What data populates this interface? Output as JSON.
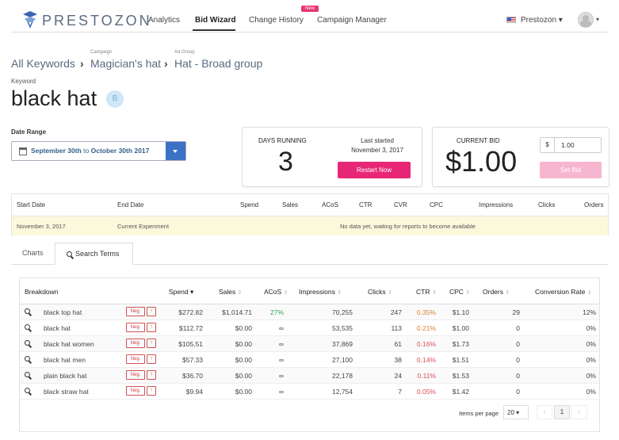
{
  "nav": {
    "brand": "PRESTOZON",
    "links": [
      "Analytics",
      "Bid Wizard",
      "Change History",
      "Campaign Manager"
    ],
    "new_badge": "New",
    "account": "Prestozon"
  },
  "breadcrumb": {
    "root": "All Keywords",
    "campaign_caption": "Campaign",
    "campaign": "Magician's hat",
    "adgroup_caption": "Ad Group",
    "adgroup": "Hat - Broad group"
  },
  "keyword": {
    "label": "Keyword",
    "title": "black hat",
    "badge": "B"
  },
  "date_range": {
    "label": "Date Range",
    "start": "September 30th",
    "sep": "to",
    "end": "October 30th 2017"
  },
  "days_card": {
    "label": "DAYS RUNNING",
    "value": "3",
    "last_started_label": "Last started",
    "last_started": "November 3, 2017",
    "button": "Restart Now"
  },
  "bid_card": {
    "label": "CURRENT BID",
    "value": "$1.00",
    "currency": "$",
    "input": "1.00",
    "button": "Set Bid"
  },
  "experiment": {
    "headers": [
      "Start Date",
      "End Date",
      "Spend",
      "Sales",
      "ACoS",
      "CTR",
      "CVR",
      "CPC",
      "Impressions",
      "Clicks",
      "Orders"
    ],
    "row": {
      "start": "November 3, 2017",
      "end": "Current Experiment",
      "message": "No data yet, waiting for reports to become available"
    }
  },
  "tabs": [
    "Charts",
    "Search Terms"
  ],
  "search_terms": {
    "headers": [
      "Breakdown",
      "Spend",
      "Sales",
      "ACoS",
      "Impressions",
      "Clicks",
      "CTR",
      "CPC",
      "Orders",
      "Conversion Rate"
    ],
    "neg_label": "Neg.",
    "rows": [
      {
        "term": "black top hat",
        "spend": "$272.82",
        "sales": "$1,014.71",
        "acos": "27%",
        "impressions": "70,255",
        "clicks": "247",
        "ctr": "0.35%",
        "cpc": "$1.10",
        "orders": "29",
        "conv": "12%"
      },
      {
        "term": "black hat",
        "spend": "$112.72",
        "sales": "$0.00",
        "acos": "∞",
        "impressions": "53,535",
        "clicks": "113",
        "ctr": "0.21%",
        "cpc": "$1.00",
        "orders": "0",
        "conv": "0%"
      },
      {
        "term": "black hat women",
        "spend": "$105.51",
        "sales": "$0.00",
        "acos": "∞",
        "impressions": "37,869",
        "clicks": "61",
        "ctr": "0.16%",
        "cpc": "$1.73",
        "orders": "0",
        "conv": "0%"
      },
      {
        "term": "black hat men",
        "spend": "$57.33",
        "sales": "$0.00",
        "acos": "∞",
        "impressions": "27,100",
        "clicks": "38",
        "ctr": "0.14%",
        "cpc": "$1.51",
        "orders": "0",
        "conv": "0%"
      },
      {
        "term": "plain black hat",
        "spend": "$36.70",
        "sales": "$0.00",
        "acos": "∞",
        "impressions": "22,178",
        "clicks": "24",
        "ctr": "0.11%",
        "cpc": "$1.53",
        "orders": "0",
        "conv": "0%"
      },
      {
        "term": "black straw hat",
        "spend": "$9.94",
        "sales": "$0.00",
        "acos": "∞",
        "impressions": "12,754",
        "clicks": "7",
        "ctr": "0.05%",
        "cpc": "$1.42",
        "orders": "0",
        "conv": "0%"
      }
    ],
    "pagination": {
      "label": "Items per page",
      "per_page": "20",
      "page": "1"
    }
  },
  "colors": {
    "accent_pink": "#e72776",
    "acos_good": "#2fa84f",
    "ctr_warn": "#d9822b",
    "ctr_bad": "#d9534f",
    "primary_blue": "#3b72c6"
  }
}
